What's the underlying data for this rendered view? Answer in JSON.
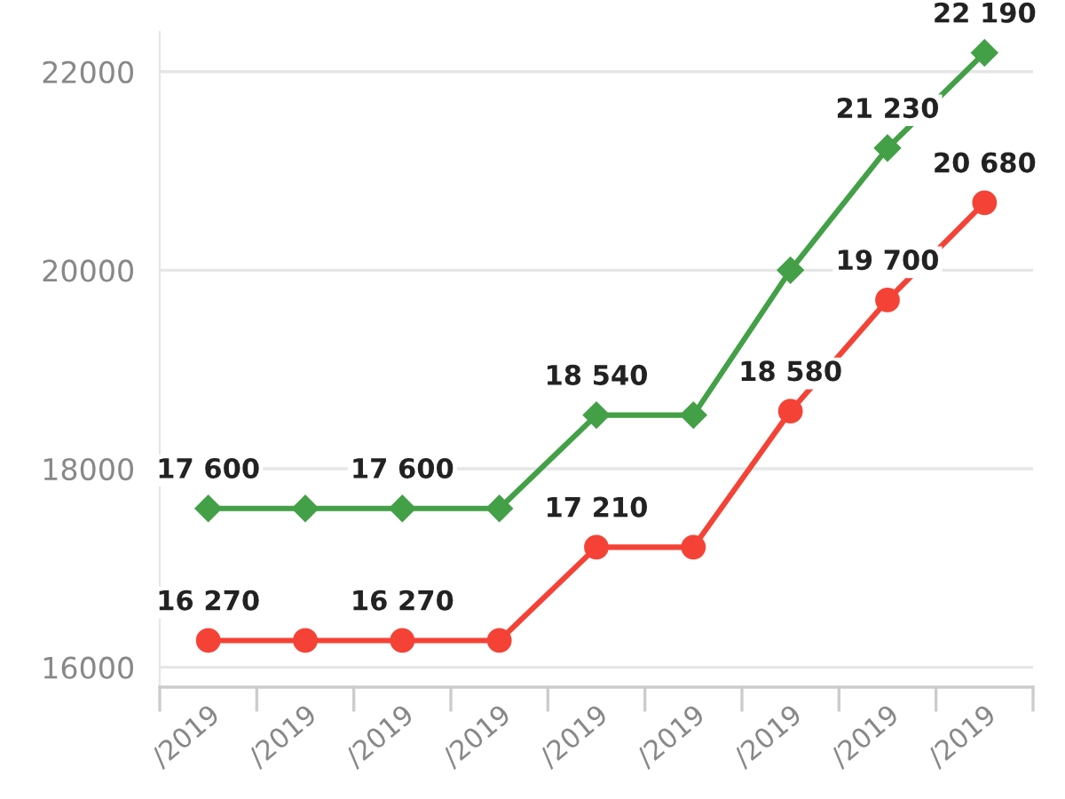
{
  "chart_data": {
    "type": "line",
    "categories": [
      "/2019",
      "/2019",
      "/2019",
      "/2019",
      "/2019",
      "/2019",
      "/2019",
      "/2019",
      "/2019"
    ],
    "series": [
      {
        "color": "#43a047",
        "marker": "diamond",
        "values": [
          17600,
          17600,
          17600,
          17600,
          18540,
          18540,
          20000,
          21230,
          22190
        ],
        "value_labels": [
          "17 600",
          null,
          "17 600",
          null,
          "18 540",
          null,
          null,
          "21 230",
          "22 190"
        ]
      },
      {
        "color": "#f44336",
        "marker": "circle",
        "values": [
          16270,
          16270,
          16270,
          16270,
          17210,
          17210,
          18580,
          19700,
          20680
        ],
        "value_labels": [
          "16 270",
          null,
          "16 270",
          null,
          "17 210",
          null,
          "18 580",
          "19 700",
          "20 680"
        ]
      }
    ],
    "ylim": [
      15800,
      22400
    ],
    "yticks": [
      16000,
      18000,
      20000,
      22000
    ],
    "grid": "y",
    "legend": false
  }
}
